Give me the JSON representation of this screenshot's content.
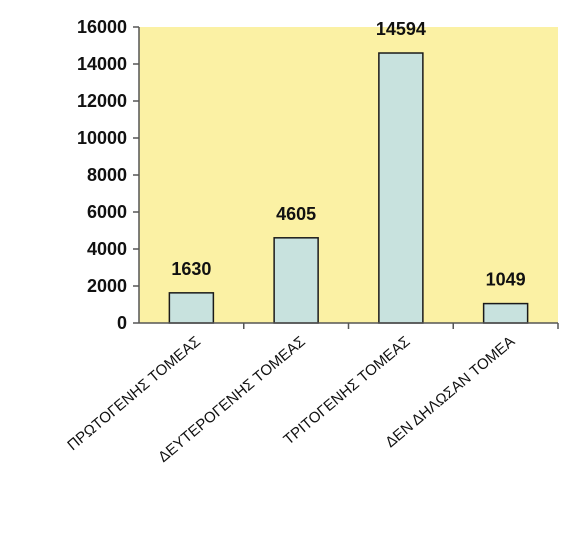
{
  "chart_data": {
    "type": "bar",
    "title": "",
    "xlabel": "",
    "ylabel": "",
    "categories": [
      "ΠΡΩΤΟΓΕΝΗΣ ΤΟΜΕΑΣ",
      "ΔΕΥΤΕΡΟΓΕΝΗΣ ΤΟΜΕΑΣ",
      "ΤΡΙΤΟΓΕΝΗΣ ΤΟΜΕΑΣ",
      "ΔΕΝ ΔΗΛΩΣΑΝ ΤΟΜΕΑ"
    ],
    "values": [
      1630,
      4605,
      14594,
      1049
    ],
    "data_labels": [
      "1630",
      "4605",
      "14594",
      "1049"
    ],
    "ylim": [
      0,
      16000
    ],
    "yticks": [
      0,
      2000,
      4000,
      6000,
      8000,
      10000,
      12000,
      14000,
      16000
    ],
    "ytick_labels": [
      "0",
      "2000",
      "4000",
      "6000",
      "8000",
      "10000",
      "12000",
      "14000",
      "16000"
    ],
    "grid": false,
    "legend": "none",
    "colors": {
      "plot_background": "#FBF1A4",
      "bar_fill": "#C8E2DE",
      "bar_stroke": "#1a1a1a",
      "axis": "#555555",
      "text": "#111111"
    }
  }
}
